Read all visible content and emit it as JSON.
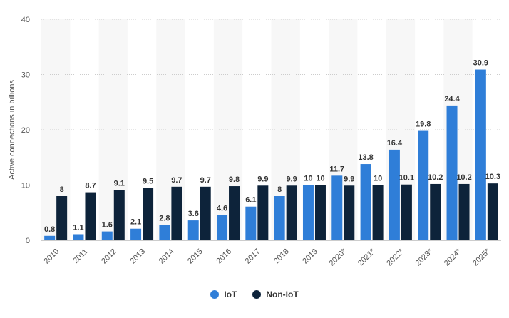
{
  "chart_data": {
    "type": "bar",
    "title": "",
    "xlabel": "",
    "ylabel": "Active connections in billions",
    "ylim": [
      0,
      40
    ],
    "yticks": [
      0,
      10,
      20,
      30,
      40
    ],
    "grid": true,
    "legend_position": "bottom",
    "categories": [
      "2010",
      "2011",
      "2012",
      "2013",
      "2014",
      "2015",
      "2016",
      "2017",
      "2018",
      "2019",
      "2020*",
      "2021*",
      "2022*",
      "2023*",
      "2024*",
      "2025*"
    ],
    "series": [
      {
        "name": "IoT",
        "color": "#2f7ed8",
        "values": [
          0.8,
          1.1,
          1.6,
          2.1,
          2.8,
          3.6,
          4.6,
          6.1,
          8,
          10,
          11.7,
          13.8,
          16.4,
          19.8,
          24.4,
          30.9
        ]
      },
      {
        "name": "Non-IoT",
        "color": "#0d233a",
        "values": [
          8,
          8.7,
          9.1,
          9.5,
          9.7,
          9.7,
          9.8,
          9.9,
          9.9,
          10,
          9.9,
          10,
          10.1,
          10.2,
          10.2,
          10.3
        ]
      }
    ]
  },
  "legend": {
    "items": [
      {
        "label": "IoT",
        "color": "#2f7ed8"
      },
      {
        "label": "Non-IoT",
        "color": "#0d233a"
      }
    ]
  }
}
